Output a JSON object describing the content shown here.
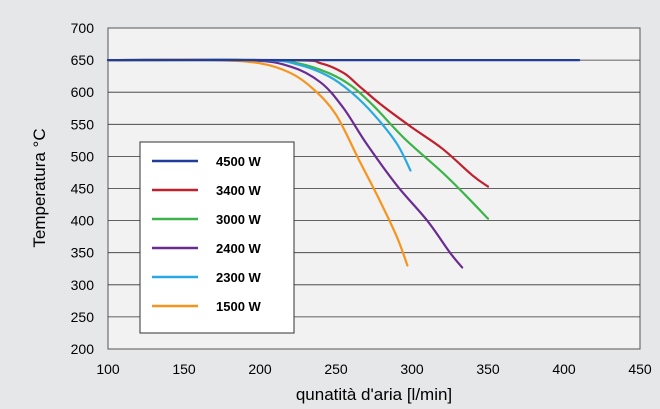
{
  "chart_data": {
    "type": "line",
    "xlabel": "qunatità d'aria [l/min]",
    "ylabel": "Temperatura °C",
    "xlim": [
      100,
      450
    ],
    "ylim": [
      200,
      700
    ],
    "xticks": [
      100,
      150,
      200,
      250,
      300,
      350,
      400,
      450
    ],
    "yticks": [
      200,
      250,
      300,
      350,
      400,
      450,
      500,
      550,
      600,
      650,
      700
    ],
    "grid": "horizontal",
    "legend_position": "bottom-left",
    "series": [
      {
        "name": "4500 W",
        "color": "#1f3d99",
        "points": [
          [
            100,
            650
          ],
          [
            410,
            650
          ]
        ]
      },
      {
        "name": "3400 W",
        "color": "#c0202e",
        "points": [
          [
            100,
            650
          ],
          [
            220,
            650
          ],
          [
            240,
            645
          ],
          [
            255,
            630
          ],
          [
            265,
            610
          ],
          [
            280,
            580
          ],
          [
            300,
            545
          ],
          [
            320,
            512
          ],
          [
            340,
            470
          ],
          [
            350,
            453
          ]
        ]
      },
      {
        "name": "3000 W",
        "color": "#3cb44a",
        "points": [
          [
            100,
            650
          ],
          [
            200,
            650
          ],
          [
            225,
            645
          ],
          [
            245,
            630
          ],
          [
            260,
            610
          ],
          [
            275,
            578
          ],
          [
            295,
            528
          ],
          [
            320,
            475
          ],
          [
            335,
            440
          ],
          [
            350,
            403
          ]
        ]
      },
      {
        "name": "2400 W",
        "color": "#6a2c91",
        "points": [
          [
            100,
            650
          ],
          [
            190,
            650
          ],
          [
            220,
            640
          ],
          [
            240,
            615
          ],
          [
            255,
            575
          ],
          [
            270,
            520
          ],
          [
            290,
            455
          ],
          [
            310,
            400
          ],
          [
            325,
            350
          ],
          [
            333,
            327
          ]
        ]
      },
      {
        "name": "2300 W",
        "color": "#29a9e1",
        "points": [
          [
            100,
            650
          ],
          [
            200,
            650
          ],
          [
            225,
            643
          ],
          [
            245,
            625
          ],
          [
            260,
            600
          ],
          [
            275,
            565
          ],
          [
            290,
            520
          ],
          [
            299,
            478
          ]
        ]
      },
      {
        "name": "1500 W",
        "color": "#f7941d",
        "points": [
          [
            100,
            650
          ],
          [
            170,
            650
          ],
          [
            200,
            645
          ],
          [
            220,
            630
          ],
          [
            235,
            605
          ],
          [
            250,
            565
          ],
          [
            265,
            495
          ],
          [
            278,
            435
          ],
          [
            290,
            375
          ],
          [
            297,
            330
          ]
        ]
      }
    ]
  }
}
